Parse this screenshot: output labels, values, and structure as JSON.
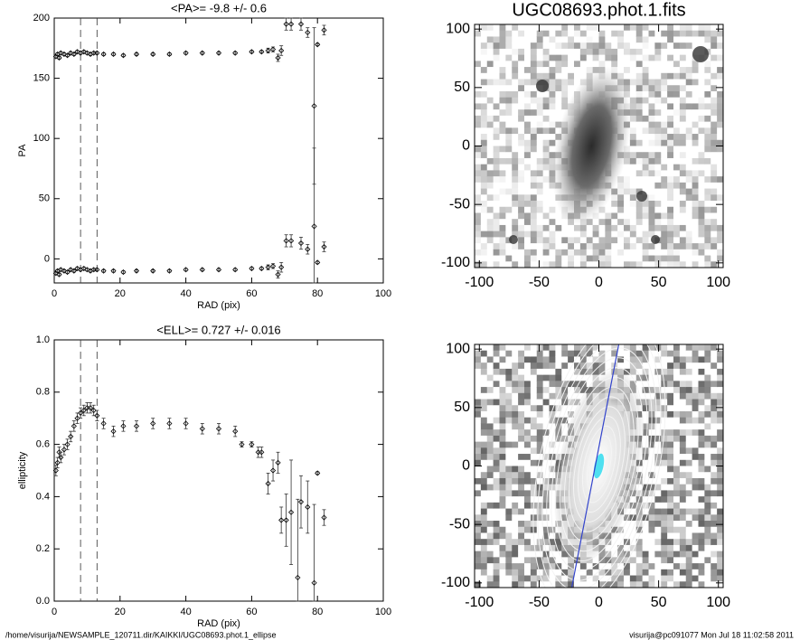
{
  "charts": [
    {
      "type": "scatter",
      "title": "<PA>=  -9.8 +/-   0.6",
      "xlabel": "RAD (pix)",
      "ylabel": "PA",
      "xlim": [
        0,
        100
      ],
      "ylim": [
        -20,
        200
      ],
      "xticks": [
        0,
        20,
        40,
        60,
        80,
        100
      ],
      "yticks": [
        0,
        50,
        100,
        150,
        200
      ],
      "vlines": [
        8,
        13
      ],
      "x": [
        0.5,
        1,
        1.5,
        2,
        3,
        4,
        5,
        6,
        7,
        8,
        9,
        10,
        11,
        12,
        13,
        15,
        18,
        21,
        25,
        30,
        35,
        40,
        45,
        50,
        55,
        60,
        63,
        65,
        66.5,
        68,
        69,
        70.5,
        72,
        75,
        77,
        79,
        80,
        82
      ],
      "series": [
        {
          "values": [
            168,
            170,
            167,
            171,
            170,
            169,
            171,
            170,
            172,
            171,
            172,
            171,
            170,
            171,
            171,
            170,
            170,
            169,
            170,
            170,
            170,
            171,
            171,
            171,
            171,
            172,
            172,
            173,
            174,
            167,
            173,
            195,
            195,
            195,
            188,
            127,
            178,
            190
          ],
          "errors": [
            1,
            1,
            1,
            1,
            1,
            1,
            1,
            1,
            1,
            1,
            1,
            1,
            1,
            1,
            1,
            1,
            1,
            1,
            1,
            1,
            1,
            1,
            1,
            1,
            1,
            1,
            1,
            2,
            2,
            3,
            4,
            5,
            5,
            5,
            4,
            65,
            1,
            4
          ]
        },
        {
          "values": [
            -12,
            -10,
            -13,
            -9,
            -10,
            -11,
            -9,
            -10,
            -8,
            -9,
            -8,
            -9,
            -10,
            -9,
            -9,
            -10,
            -10,
            -11,
            -10,
            -10,
            -10,
            -9,
            -9,
            -9,
            -9,
            -8,
            -8,
            -7,
            -6,
            -13,
            -7,
            15,
            15,
            13,
            8,
            27,
            -3,
            10
          ],
          "errors": [
            1,
            1,
            1,
            1,
            1,
            1,
            1,
            1,
            1,
            1,
            1,
            1,
            1,
            1,
            1,
            1,
            1,
            1,
            1,
            1,
            1,
            1,
            1,
            1,
            1,
            1,
            1,
            2,
            2,
            3,
            4,
            5,
            5,
            5,
            4,
            65,
            1,
            4
          ]
        }
      ]
    },
    {
      "type": "scatter",
      "title": "<ELL>= 0.727 +/-  0.016",
      "xlabel": "RAD (pix)",
      "ylabel": "ellipticity",
      "xlim": [
        0,
        100
      ],
      "ylim": [
        0,
        1
      ],
      "xticks": [
        0,
        20,
        40,
        60,
        80,
        100
      ],
      "yticks": [
        {
          "value": 0,
          "label": "0.0"
        },
        0.2,
        0.4,
        0.6,
        0.8,
        {
          "value": 1,
          "label": "1.0"
        }
      ],
      "vlines": [
        8,
        13
      ],
      "x": [
        0.5,
        1,
        1.5,
        2,
        3,
        4,
        5,
        6,
        7,
        8,
        9,
        10,
        11,
        12,
        13,
        15,
        18,
        21,
        25,
        30,
        35,
        40,
        45,
        50,
        55,
        57,
        60,
        62,
        63,
        65,
        66.5,
        68,
        69,
        70.5,
        72,
        74,
        75,
        77,
        79,
        80,
        82
      ],
      "series": [
        {
          "values": [
            0.5,
            0.53,
            0.57,
            0.55,
            0.58,
            0.6,
            0.63,
            0.67,
            0.7,
            0.72,
            0.73,
            0.74,
            0.74,
            0.73,
            0.71,
            0.68,
            0.65,
            0.67,
            0.67,
            0.68,
            0.68,
            0.68,
            0.66,
            0.66,
            0.65,
            0.6,
            0.6,
            0.57,
            0.57,
            0.45,
            0.5,
            0.53,
            0.31,
            0.31,
            0.34,
            0.09,
            0.38,
            0.36,
            0.07,
            0.49,
            0.32
          ],
          "errors": [
            0.02,
            0.02,
            0.02,
            0.02,
            0.02,
            0.02,
            0.02,
            0.02,
            0.02,
            0.02,
            0.02,
            0.02,
            0.02,
            0.02,
            0.02,
            0.02,
            0.02,
            0.02,
            0.02,
            0.02,
            0.02,
            0.02,
            0.02,
            0.02,
            0.02,
            0.01,
            0.01,
            0.02,
            0.02,
            0.04,
            0.04,
            0.04,
            0.05,
            0.1,
            0.2,
            0.3,
            0.1,
            0.1,
            0.3,
            0.005,
            0.03
          ]
        }
      ]
    },
    {
      "type": "image",
      "title": "UGC08693.phot.1.fits",
      "xlim": [
        -104,
        104
      ],
      "ylim": [
        -104,
        104
      ],
      "xticks": [
        -100,
        -50,
        0,
        50,
        100
      ],
      "yticks": [
        -100,
        -50,
        0,
        50,
        100
      ],
      "mode": "raw"
    },
    {
      "type": "image",
      "xlim": [
        -104,
        104
      ],
      "ylim": [
        -104,
        104
      ],
      "xticks": [
        -100,
        -50,
        0,
        50,
        100
      ],
      "yticks": [
        -100,
        -50,
        0,
        50,
        100
      ],
      "mode": "model"
    }
  ],
  "footer": {
    "left": "/home/visurija/NEWSAMPLE_120711.dir/KAIKKI/UGC08693.phot.1_ellipse",
    "right": "visurija@pc091077  Mon Jul 18 11:02:58 2011"
  }
}
